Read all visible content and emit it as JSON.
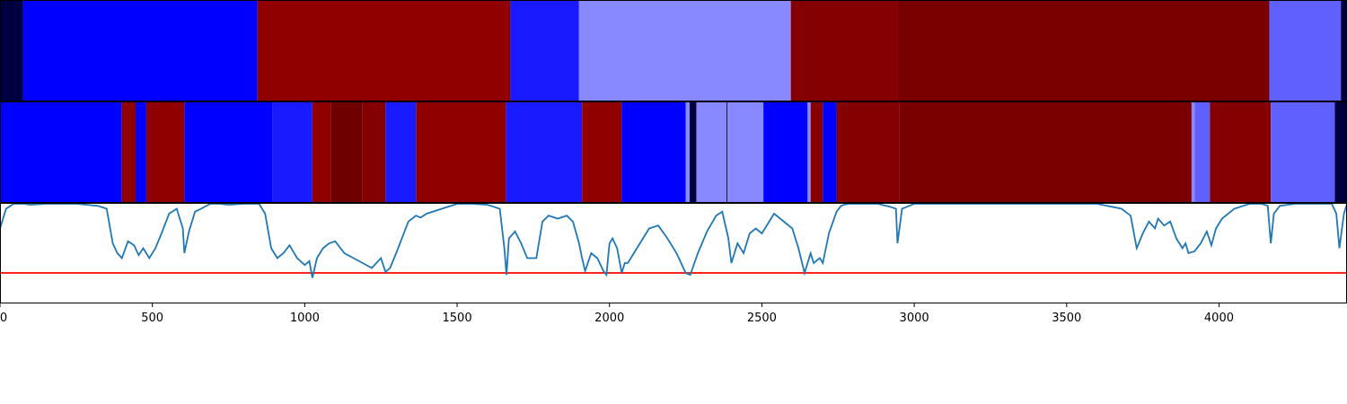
{
  "chart_data": {
    "type": "segmentation-and-line",
    "xlim": [
      0,
      4420
    ],
    "x_ticks": [
      0,
      500,
      1000,
      1500,
      2000,
      2500,
      3000,
      3500,
      4000
    ],
    "x_tick_labels": [
      "0",
      "500",
      "1000",
      "1500",
      "2000",
      "2500",
      "3000",
      "3500",
      "4000"
    ],
    "colors": {
      "navy": "#000040",
      "blue": "#0000ff",
      "blue_mid": "#1a1aff",
      "blue_light": "#8888ff",
      "blue_pale": "#6060ff",
      "red": "#900000",
      "red_dark": "#800000",
      "red_darker": "#7a0000",
      "red_deep": "#6e0000",
      "line": "#1f77b4",
      "threshold": "#ff0000"
    },
    "top_segments": [
      {
        "start": 0,
        "end": 75,
        "color": "#000040"
      },
      {
        "start": 75,
        "end": 845,
        "color": "#0000ff"
      },
      {
        "start": 845,
        "end": 1675,
        "color": "#900000"
      },
      {
        "start": 1675,
        "end": 1900,
        "color": "#1a1aff"
      },
      {
        "start": 1900,
        "end": 2595,
        "color": "#8888ff"
      },
      {
        "start": 2595,
        "end": 2945,
        "color": "#850000"
      },
      {
        "start": 2945,
        "end": 4165,
        "color": "#7a0000"
      },
      {
        "start": 4165,
        "end": 4400,
        "color": "#6060ff"
      },
      {
        "start": 4400,
        "end": 4420,
        "color": "#000040"
      }
    ],
    "middle_segments": [
      {
        "start": 0,
        "end": 400,
        "color": "#0000ff"
      },
      {
        "start": 400,
        "end": 445,
        "color": "#900000"
      },
      {
        "start": 445,
        "end": 480,
        "color": "#0000ff"
      },
      {
        "start": 480,
        "end": 605,
        "color": "#900000"
      },
      {
        "start": 605,
        "end": 895,
        "color": "#0000ff"
      },
      {
        "start": 895,
        "end": 1025,
        "color": "#1a1aff"
      },
      {
        "start": 1025,
        "end": 1085,
        "color": "#900000"
      },
      {
        "start": 1085,
        "end": 1190,
        "color": "#6e0000"
      },
      {
        "start": 1190,
        "end": 1265,
        "color": "#850000"
      },
      {
        "start": 1265,
        "end": 1365,
        "color": "#1a1aff"
      },
      {
        "start": 1365,
        "end": 1660,
        "color": "#900000"
      },
      {
        "start": 1660,
        "end": 1910,
        "color": "#1a1aff"
      },
      {
        "start": 1910,
        "end": 2040,
        "color": "#900000"
      },
      {
        "start": 2040,
        "end": 2250,
        "color": "#0000ff"
      },
      {
        "start": 2250,
        "end": 2263,
        "color": "#8888ff"
      },
      {
        "start": 2263,
        "end": 2285,
        "color": "#000040"
      },
      {
        "start": 2285,
        "end": 2505,
        "color": "#8888ff"
      },
      {
        "start": 2505,
        "end": 2650,
        "color": "#0000ff"
      },
      {
        "start": 2650,
        "end": 2660,
        "color": "#8888ff"
      },
      {
        "start": 2660,
        "end": 2700,
        "color": "#850000"
      },
      {
        "start": 2700,
        "end": 2745,
        "color": "#0000ff"
      },
      {
        "start": 2745,
        "end": 2950,
        "color": "#850000"
      },
      {
        "start": 2950,
        "end": 3910,
        "color": "#7a0000"
      },
      {
        "start": 3910,
        "end": 3920,
        "color": "#8888ff"
      },
      {
        "start": 3920,
        "end": 3970,
        "color": "#6060ff"
      },
      {
        "start": 3970,
        "end": 4170,
        "color": "#850000"
      },
      {
        "start": 4170,
        "end": 4380,
        "color": "#6060ff"
      },
      {
        "start": 4380,
        "end": 4420,
        "color": "#000040"
      }
    ],
    "middle_dividers": [
      2385
    ],
    "line_series": {
      "ylim": [
        0,
        1
      ],
      "threshold": 0.3,
      "x": [
        0,
        20,
        45,
        60,
        80,
        100,
        150,
        250,
        320,
        350,
        370,
        385,
        400,
        420,
        440,
        455,
        470,
        490,
        510,
        530,
        555,
        580,
        600,
        605,
        620,
        640,
        660,
        690,
        720,
        750,
        800,
        850,
        870,
        890,
        910,
        930,
        950,
        975,
        1000,
        1015,
        1025,
        1040,
        1060,
        1080,
        1100,
        1130,
        1160,
        1190,
        1220,
        1250,
        1265,
        1280,
        1300,
        1340,
        1365,
        1380,
        1400,
        1450,
        1500,
        1550,
        1600,
        1640,
        1655,
        1662,
        1670,
        1690,
        1710,
        1730,
        1760,
        1780,
        1800,
        1830,
        1860,
        1880,
        1900,
        1910,
        1920,
        1940,
        1960,
        1980,
        1990,
        2000,
        2010,
        2025,
        2040,
        2050,
        2060,
        2080,
        2100,
        2130,
        2160,
        2190,
        2220,
        2250,
        2265,
        2290,
        2320,
        2350,
        2370,
        2390,
        2400,
        2420,
        2440,
        2460,
        2480,
        2500,
        2520,
        2540,
        2560,
        2580,
        2600,
        2620,
        2640,
        2660,
        2670,
        2690,
        2700,
        2720,
        2745,
        2760,
        2780,
        2820,
        2880,
        2920,
        2940,
        2945,
        2960,
        3000,
        3100,
        3200,
        3300,
        3400,
        3500,
        3600,
        3680,
        3710,
        3730,
        3750,
        3770,
        3790,
        3800,
        3820,
        3840,
        3860,
        3880,
        3890,
        3900,
        3920,
        3940,
        3960,
        3975,
        3990,
        4010,
        4050,
        4100,
        4140,
        4160,
        4170,
        4180,
        4200,
        4250,
        4300,
        4350,
        4370,
        4385,
        4395,
        4410,
        4420
      ],
      "y": [
        0.75,
        0.95,
        1.0,
        1.0,
        1.0,
        0.99,
        1.0,
        1.0,
        0.98,
        0.95,
        0.6,
        0.5,
        0.45,
        0.62,
        0.58,
        0.48,
        0.55,
        0.45,
        0.55,
        0.7,
        0.9,
        0.95,
        0.75,
        0.5,
        0.72,
        0.92,
        0.95,
        1.0,
        1.0,
        0.99,
        1.0,
        1.0,
        0.9,
        0.55,
        0.45,
        0.5,
        0.58,
        0.45,
        0.38,
        0.42,
        0.25,
        0.45,
        0.55,
        0.6,
        0.62,
        0.5,
        0.45,
        0.4,
        0.35,
        0.45,
        0.31,
        0.35,
        0.5,
        0.82,
        0.88,
        0.86,
        0.9,
        0.95,
        1.0,
        1.0,
        0.99,
        0.95,
        0.55,
        0.28,
        0.65,
        0.72,
        0.6,
        0.45,
        0.45,
        0.82,
        0.88,
        0.85,
        0.88,
        0.82,
        0.6,
        0.45,
        0.32,
        0.5,
        0.45,
        0.32,
        0.28,
        0.6,
        0.65,
        0.55,
        0.3,
        0.4,
        0.4,
        0.5,
        0.6,
        0.75,
        0.78,
        0.65,
        0.5,
        0.3,
        0.28,
        0.5,
        0.72,
        0.88,
        0.92,
        0.65,
        0.4,
        0.6,
        0.5,
        0.7,
        0.75,
        0.7,
        0.8,
        0.9,
        0.85,
        0.8,
        0.75,
        0.55,
        0.3,
        0.5,
        0.4,
        0.45,
        0.4,
        0.7,
        0.92,
        0.98,
        1.0,
        1.0,
        1.0,
        0.97,
        0.95,
        0.6,
        0.95,
        1.0,
        1.0,
        1.0,
        1.0,
        1.0,
        1.0,
        1.0,
        0.95,
        0.88,
        0.55,
        0.7,
        0.82,
        0.75,
        0.85,
        0.78,
        0.82,
        0.65,
        0.55,
        0.6,
        0.5,
        0.52,
        0.6,
        0.72,
        0.58,
        0.75,
        0.85,
        0.95,
        1.0,
        1.0,
        0.98,
        0.6,
        0.9,
        0.98,
        1.0,
        1.0,
        1.0,
        1.0,
        0.9,
        0.55,
        0.9,
        1.0
      ]
    }
  }
}
